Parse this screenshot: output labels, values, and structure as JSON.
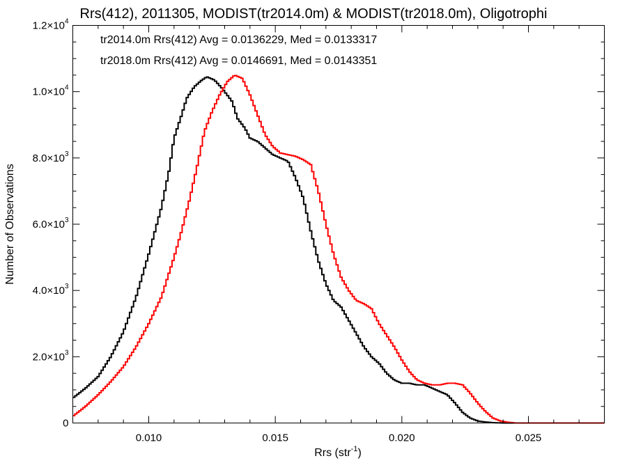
{
  "chart_data": {
    "type": "line",
    "title": "Rrs(412), 2011305, MODIST(tr2014.0m) & MODIST(tr2018.0m), Oligotrophi",
    "xlabel_main": "Rrs (str",
    "xlabel_sup": "-1",
    "xlabel_close": ")",
    "ylabel": "Number of Observations",
    "xlim": [
      0.007,
      0.028
    ],
    "ylim": [
      0,
      12000
    ],
    "x_ticks": [
      {
        "value": 0.01,
        "label": "0.010"
      },
      {
        "value": 0.015,
        "label": "0.015"
      },
      {
        "value": 0.02,
        "label": "0.020"
      },
      {
        "value": 0.025,
        "label": "0.025"
      }
    ],
    "y_ticks": [
      {
        "value": 0,
        "mant": "0",
        "exp": ""
      },
      {
        "value": 2000,
        "mant": "2.0×10",
        "exp": "3"
      },
      {
        "value": 4000,
        "mant": "4.0×10",
        "exp": "3"
      },
      {
        "value": 6000,
        "mant": "6.0×10",
        "exp": "3"
      },
      {
        "value": 8000,
        "mant": "8.0×10",
        "exp": "3"
      },
      {
        "value": 10000,
        "mant": "1.0×10",
        "exp": "4"
      },
      {
        "value": 12000,
        "mant": "1.2×10",
        "exp": "4"
      }
    ],
    "legend": [
      {
        "text": "tr2014.0m Rrs(412) Avg = 0.0136229, Med = 0.0133317",
        "color": "#000000"
      },
      {
        "text": "tr2018.0m Rrs(412) Avg = 0.0146691, Med = 0.0143351",
        "color": "#ff0000"
      }
    ],
    "series": [
      {
        "color": "#000000",
        "points": [
          [
            0.007,
            750
          ],
          [
            0.0075,
            1050
          ],
          [
            0.008,
            1400
          ],
          [
            0.0085,
            2000
          ],
          [
            0.009,
            2750
          ],
          [
            0.0095,
            3800
          ],
          [
            0.01,
            5100
          ],
          [
            0.0105,
            6500
          ],
          [
            0.0108,
            7600
          ],
          [
            0.011,
            8600
          ],
          [
            0.0113,
            9300
          ],
          [
            0.0115,
            9800
          ],
          [
            0.0118,
            10150
          ],
          [
            0.0121,
            10350
          ],
          [
            0.0123,
            10450
          ],
          [
            0.0126,
            10350
          ],
          [
            0.0129,
            10100
          ],
          [
            0.0131,
            9900
          ],
          [
            0.0133,
            9700
          ],
          [
            0.0135,
            9200
          ],
          [
            0.0138,
            8900
          ],
          [
            0.014,
            8600
          ],
          [
            0.0143,
            8500
          ],
          [
            0.0146,
            8300
          ],
          [
            0.0149,
            8100
          ],
          [
            0.0152,
            8000
          ],
          [
            0.0155,
            7900
          ],
          [
            0.0158,
            7400
          ],
          [
            0.0161,
            6800
          ],
          [
            0.0164,
            5800
          ],
          [
            0.0167,
            4900
          ],
          [
            0.017,
            4200
          ],
          [
            0.0173,
            3700
          ],
          [
            0.0176,
            3500
          ],
          [
            0.0179,
            3100
          ],
          [
            0.0182,
            2700
          ],
          [
            0.0185,
            2300
          ],
          [
            0.0188,
            2000
          ],
          [
            0.0191,
            1800
          ],
          [
            0.0194,
            1500
          ],
          [
            0.0197,
            1300
          ],
          [
            0.02,
            1200
          ],
          [
            0.0203,
            1200
          ],
          [
            0.0206,
            1150
          ],
          [
            0.0209,
            1150
          ],
          [
            0.0212,
            1050
          ],
          [
            0.0215,
            950
          ],
          [
            0.0218,
            850
          ],
          [
            0.0221,
            600
          ],
          [
            0.0224,
            320
          ],
          [
            0.0227,
            150
          ],
          [
            0.023,
            60
          ],
          [
            0.0233,
            30
          ],
          [
            0.0236,
            10
          ],
          [
            0.024,
            0
          ],
          [
            0.028,
            0
          ]
        ]
      },
      {
        "color": "#ff0000",
        "points": [
          [
            0.007,
            200
          ],
          [
            0.0075,
            500
          ],
          [
            0.008,
            850
          ],
          [
            0.0085,
            1250
          ],
          [
            0.009,
            1700
          ],
          [
            0.0095,
            2300
          ],
          [
            0.01,
            3000
          ],
          [
            0.0105,
            3800
          ],
          [
            0.011,
            5000
          ],
          [
            0.0113,
            5800
          ],
          [
            0.0116,
            6700
          ],
          [
            0.0119,
            7700
          ],
          [
            0.0122,
            8800
          ],
          [
            0.0125,
            9400
          ],
          [
            0.0128,
            9900
          ],
          [
            0.0131,
            10300
          ],
          [
            0.0134,
            10500
          ],
          [
            0.0137,
            10400
          ],
          [
            0.014,
            9900
          ],
          [
            0.0143,
            9300
          ],
          [
            0.0146,
            8700
          ],
          [
            0.0149,
            8350
          ],
          [
            0.0152,
            8150
          ],
          [
            0.0155,
            8100
          ],
          [
            0.0158,
            8050
          ],
          [
            0.0161,
            7950
          ],
          [
            0.0164,
            7800
          ],
          [
            0.0167,
            7000
          ],
          [
            0.017,
            6000
          ],
          [
            0.0173,
            5100
          ],
          [
            0.0176,
            4400
          ],
          [
            0.0179,
            4000
          ],
          [
            0.0182,
            3700
          ],
          [
            0.0185,
            3600
          ],
          [
            0.0188,
            3450
          ],
          [
            0.0191,
            3000
          ],
          [
            0.0194,
            2650
          ],
          [
            0.0197,
            2300
          ],
          [
            0.02,
            1900
          ],
          [
            0.0203,
            1550
          ],
          [
            0.0206,
            1300
          ],
          [
            0.0209,
            1200
          ],
          [
            0.0212,
            1150
          ],
          [
            0.0215,
            1150
          ],
          [
            0.0218,
            1200
          ],
          [
            0.0221,
            1200
          ],
          [
            0.0224,
            1150
          ],
          [
            0.0227,
            900
          ],
          [
            0.023,
            600
          ],
          [
            0.0233,
            350
          ],
          [
            0.0236,
            150
          ],
          [
            0.0239,
            60
          ],
          [
            0.0242,
            20
          ],
          [
            0.0245,
            0
          ],
          [
            0.028,
            0
          ]
        ]
      }
    ]
  }
}
